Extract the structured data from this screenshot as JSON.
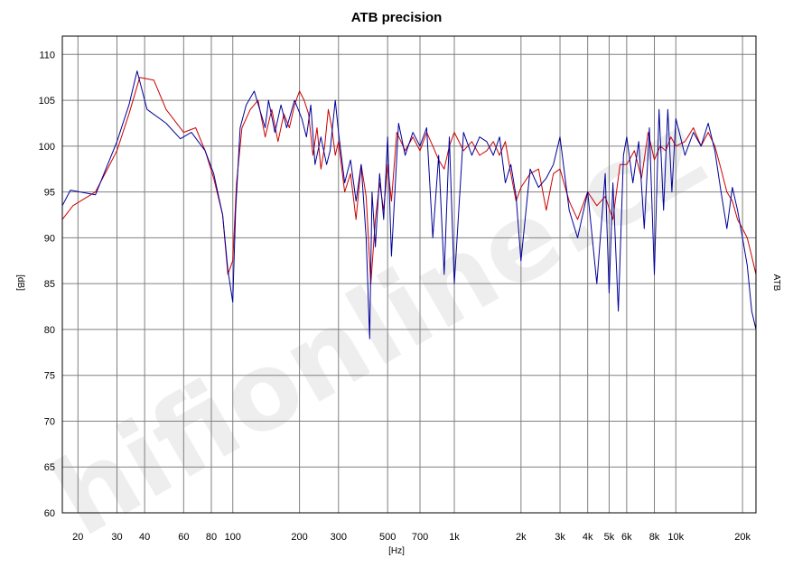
{
  "chart_data": {
    "type": "line",
    "title": "ATB precision",
    "xlabel": "[Hz]",
    "ylabel": "[dB]",
    "right_label": "ATB",
    "watermark": "hifionline.cz",
    "xscale": "log",
    "xlim": [
      17,
      23000
    ],
    "ylim": [
      60,
      112
    ],
    "grid": true,
    "x_ticks": [
      20,
      30,
      40,
      60,
      80,
      100,
      200,
      300,
      500,
      700,
      1000,
      2000,
      3000,
      4000,
      5000,
      6000,
      8000,
      10000,
      20000
    ],
    "x_tick_labels": [
      "20",
      "30",
      "40",
      "60",
      "80",
      "100",
      "200",
      "300",
      "500",
      "700",
      "1k",
      "2k",
      "3k",
      "4k",
      "5k",
      "6k",
      "8k",
      "10k",
      "20k"
    ],
    "y_ticks": [
      60,
      65,
      70,
      75,
      80,
      85,
      90,
      95,
      100,
      105,
      110
    ],
    "y_tick_labels": [
      "60",
      "65",
      "70",
      "75",
      "80",
      "85",
      "90",
      "95",
      "100",
      "105",
      "110"
    ],
    "colors": {
      "series_red": "#cc0000",
      "series_blue": "#000099",
      "grid": "#808080"
    },
    "series": [
      {
        "color": "#cc0000",
        "x": [
          17,
          19,
          24,
          30,
          34,
          38,
          44,
          50,
          60,
          68,
          75,
          82,
          90,
          95,
          100,
          104,
          110,
          120,
          130,
          140,
          150,
          160,
          170,
          180,
          190,
          200,
          210,
          220,
          230,
          240,
          250,
          260,
          270,
          280,
          290,
          300,
          320,
          340,
          360,
          380,
          400,
          420,
          440,
          460,
          480,
          500,
          520,
          550,
          600,
          650,
          700,
          750,
          800,
          850,
          900,
          950,
          1000,
          1100,
          1200,
          1300,
          1400,
          1500,
          1600,
          1700,
          1800,
          1900,
          2000,
          2200,
          2400,
          2600,
          2800,
          3000,
          3300,
          3600,
          4000,
          4400,
          4800,
          5200,
          5600,
          6000,
          6500,
          7000,
          7500,
          8000,
          8500,
          9000,
          9500,
          10000,
          11000,
          12000,
          13000,
          14000,
          15000,
          16000,
          17000,
          18000,
          19000,
          20000,
          21000,
          22000,
          23000
        ],
        "y": [
          92,
          93.5,
          95,
          99.5,
          103.5,
          107.5,
          107.2,
          104,
          101.5,
          102,
          99.5,
          96.5,
          92.5,
          86,
          87.5,
          96,
          102,
          104,
          105,
          101,
          104,
          100.5,
          103.5,
          102,
          104.5,
          106,
          105,
          103.5,
          99,
          102,
          97.5,
          100,
          104,
          102,
          99,
          100.5,
          95,
          97,
          92,
          98,
          94.5,
          85,
          92,
          96,
          93,
          98,
          94,
          101.5,
          99.5,
          101,
          99.5,
          101.5,
          100,
          98.5,
          97.5,
          100,
          101.5,
          99.5,
          100.5,
          99,
          99.5,
          100.5,
          99,
          100.5,
          97,
          94,
          95.5,
          97,
          97.5,
          93,
          97,
          97.5,
          94,
          92,
          95,
          93.5,
          94.5,
          92,
          98,
          98,
          99.5,
          96.5,
          101.5,
          98.5,
          100,
          99.5,
          101,
          100,
          100.5,
          102,
          100,
          101.5,
          100,
          97.5,
          95,
          94,
          92,
          91,
          90,
          88,
          86
        ]
      },
      {
        "color": "#000099",
        "x": [
          17,
          18.5,
          24,
          30,
          34,
          37,
          41,
          50,
          58,
          65,
          75,
          82,
          90,
          95,
          100,
          103,
          108,
          115,
          125,
          140,
          145,
          155,
          165,
          175,
          190,
          205,
          215,
          225,
          235,
          250,
          265,
          275,
          290,
          300,
          320,
          340,
          360,
          380,
          400,
          415,
          425,
          440,
          460,
          480,
          500,
          520,
          560,
          600,
          650,
          700,
          750,
          800,
          850,
          900,
          950,
          1000,
          1100,
          1200,
          1300,
          1400,
          1500,
          1600,
          1700,
          1800,
          1900,
          2000,
          2200,
          2400,
          2600,
          2800,
          3000,
          3300,
          3600,
          4000,
          4400,
          4800,
          5000,
          5200,
          5500,
          5800,
          6000,
          6400,
          6800,
          7200,
          7600,
          8000,
          8400,
          8800,
          9200,
          9600,
          10000,
          11000,
          12000,
          13000,
          14000,
          15000,
          16000,
          17000,
          18000,
          19000,
          20000,
          21000,
          22000,
          23000
        ],
        "y": [
          93.5,
          95.2,
          94.7,
          100.5,
          104.5,
          108.2,
          104,
          102.5,
          100.8,
          101.5,
          99.5,
          97,
          92.5,
          86.5,
          83,
          93,
          102,
          104.5,
          106,
          102,
          105,
          101.5,
          104.5,
          102,
          105,
          103,
          101,
          104.5,
          98,
          101,
          98,
          99.5,
          105,
          101.5,
          96,
          98.5,
          94,
          98,
          90,
          79,
          95,
          89,
          97,
          92,
          101,
          88,
          102.5,
          99,
          101.5,
          100,
          102,
          90,
          99,
          86,
          101,
          85,
          101.5,
          99,
          101,
          100.5,
          99,
          101,
          96,
          98,
          94.5,
          87.5,
          97.5,
          95.5,
          96.5,
          98,
          101,
          93,
          90,
          95,
          85,
          97,
          84,
          96,
          82,
          99,
          101,
          96,
          100.5,
          91,
          102,
          86,
          104,
          93,
          104,
          95,
          103,
          99,
          101.5,
          100,
          102.5,
          99.5,
          95,
          91,
          95.5,
          93,
          90,
          87,
          82,
          80
        ]
      }
    ]
  }
}
